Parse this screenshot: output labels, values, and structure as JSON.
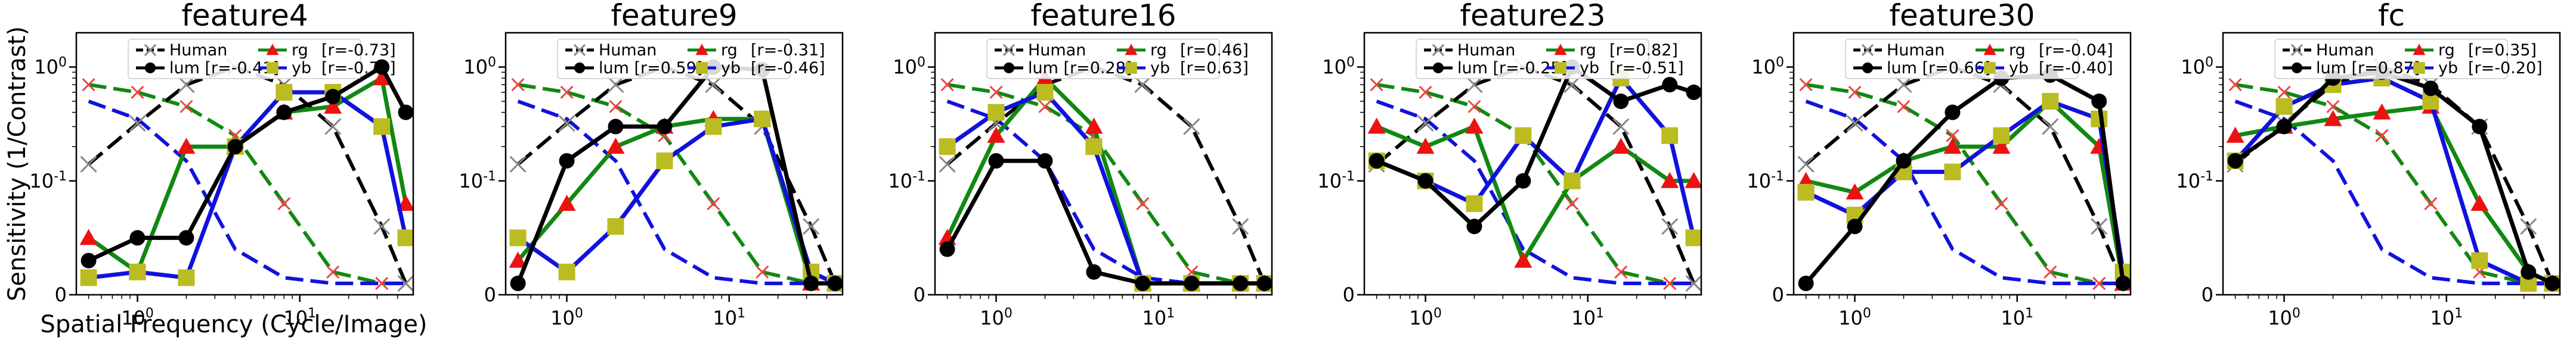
{
  "figure": {
    "ylabel": "Sensitivity (1/Contrast)",
    "xlabel": "Spatial Frequency (Cycle/Image)"
  },
  "chart_data": [
    {
      "type": "line",
      "title": "feature4",
      "x_scale": "log",
      "y_scale": "symlog",
      "xlim": [
        0.42,
        50
      ],
      "ylim": [
        0,
        2
      ],
      "x_ticks": [
        "10^0",
        "10^1"
      ],
      "y_ticks": [
        "0",
        "10^-1",
        "10^0"
      ],
      "legend_position": "upper center",
      "legend": {
        "human": "Human",
        "lum": "lum [r=-0.41]",
        "rg": "rg",
        "rg_r": "[r=-0.73]",
        "yb": "yb",
        "yb_r": "[r=-0.70]"
      },
      "series": [
        {
          "name": "Human",
          "x": [
            0.5,
            1,
            2,
            4,
            8,
            16,
            32,
            45
          ],
          "y": [
            0.14,
            0.32,
            0.7,
            1.0,
            0.7,
            0.3,
            0.06,
            0.01
          ]
        },
        {
          "name": "lum",
          "x": [
            0.5,
            1,
            2,
            4,
            8,
            16,
            32,
            45
          ],
          "y": [
            0.03,
            0.05,
            0.05,
            0.2,
            0.4,
            0.55,
            1.0,
            0.4
          ]
        },
        {
          "name": "rg",
          "x": [
            0.5,
            1,
            2,
            4,
            8,
            16,
            32,
            45
          ],
          "y": [
            0.05,
            0.02,
            0.2,
            0.2,
            0.4,
            0.45,
            0.8,
            0.08
          ]
        },
        {
          "name": "yb",
          "x": [
            0.5,
            1,
            2,
            4,
            8,
            16,
            32,
            45
          ],
          "y": [
            0.015,
            0.02,
            0.015,
            0.2,
            0.6,
            0.6,
            0.3,
            0.05
          ]
        },
        {
          "name": "human-rg",
          "x": [
            0.5,
            1,
            2,
            4,
            8,
            16,
            32,
            45
          ],
          "y": [
            0.7,
            0.6,
            0.45,
            0.25,
            0.08,
            0.02,
            0.01,
            0.01
          ]
        },
        {
          "name": "human-yb",
          "x": [
            0.5,
            1,
            2,
            4,
            8,
            16,
            32,
            45
          ],
          "y": [
            0.5,
            0.35,
            0.15,
            0.04,
            0.015,
            0.01,
            0.01,
            0.01
          ]
        }
      ]
    },
    {
      "type": "line",
      "title": "feature9",
      "x_scale": "log",
      "y_scale": "symlog",
      "xlim": [
        0.42,
        50
      ],
      "ylim": [
        0,
        2
      ],
      "x_ticks": [
        "10^0",
        "10^1"
      ],
      "y_ticks": [
        "0",
        "10^-1",
        "10^0"
      ],
      "legend_position": "upper center",
      "legend": {
        "human": "Human",
        "lum": "lum [r=0.59]",
        "rg": "rg",
        "rg_r": "[r=-0.31]",
        "yb": "yb",
        "yb_r": "[r=-0.46]"
      },
      "series": [
        {
          "name": "Human",
          "x": [
            0.5,
            1,
            2,
            4,
            8,
            16,
            32,
            45
          ],
          "y": [
            0.14,
            0.32,
            0.7,
            1.0,
            0.7,
            0.3,
            0.06,
            0.01
          ]
        },
        {
          "name": "lum",
          "x": [
            0.5,
            1,
            2,
            4,
            8,
            16,
            32,
            45
          ],
          "y": [
            0.01,
            0.15,
            0.3,
            0.3,
            1.0,
            0.95,
            0.01,
            0.01
          ]
        },
        {
          "name": "rg",
          "x": [
            0.5,
            1,
            2,
            4,
            8,
            16,
            32,
            45
          ],
          "y": [
            0.03,
            0.08,
            0.2,
            0.3,
            0.35,
            0.35,
            0.01,
            0.01
          ]
        },
        {
          "name": "yb",
          "x": [
            0.5,
            1,
            2,
            4,
            8,
            16,
            32,
            45
          ],
          "y": [
            0.05,
            0.02,
            0.06,
            0.15,
            0.3,
            0.35,
            0.02,
            0.01
          ]
        },
        {
          "name": "human-rg",
          "x": [
            0.5,
            1,
            2,
            4,
            8,
            16,
            32,
            45
          ],
          "y": [
            0.7,
            0.6,
            0.45,
            0.25,
            0.08,
            0.02,
            0.01,
            0.01
          ]
        },
        {
          "name": "human-yb",
          "x": [
            0.5,
            1,
            2,
            4,
            8,
            16,
            32,
            45
          ],
          "y": [
            0.5,
            0.35,
            0.15,
            0.04,
            0.015,
            0.01,
            0.01,
            0.01
          ]
        }
      ]
    },
    {
      "type": "line",
      "title": "feature16",
      "x_scale": "log",
      "y_scale": "symlog",
      "xlim": [
        0.42,
        50
      ],
      "ylim": [
        0,
        2
      ],
      "x_ticks": [
        "10^0",
        "10^1"
      ],
      "y_ticks": [
        "0",
        "10^-1",
        "10^0"
      ],
      "legend_position": "upper center",
      "legend": {
        "human": "Human",
        "lum": "lum [r=0.28]",
        "rg": "rg",
        "rg_r": "[r=0.46]",
        "yb": "yb",
        "yb_r": "[r=0.63]"
      },
      "series": [
        {
          "name": "Human",
          "x": [
            0.5,
            1,
            2,
            4,
            8,
            16,
            32,
            45
          ],
          "y": [
            0.14,
            0.32,
            0.7,
            1.0,
            0.7,
            0.3,
            0.06,
            0.01
          ]
        },
        {
          "name": "lum",
          "x": [
            0.5,
            1,
            2,
            4,
            8,
            16,
            32,
            45
          ],
          "y": [
            0.04,
            0.15,
            0.15,
            0.02,
            0.01,
            0.01,
            0.01,
            0.01
          ]
        },
        {
          "name": "rg",
          "x": [
            0.5,
            1,
            2,
            4,
            8,
            16,
            32,
            45
          ],
          "y": [
            0.05,
            0.25,
            0.8,
            0.3,
            0.01,
            0.01,
            0.01,
            0.01
          ]
        },
        {
          "name": "yb",
          "x": [
            0.5,
            1,
            2,
            4,
            8,
            16,
            32,
            45
          ],
          "y": [
            0.2,
            0.4,
            0.6,
            0.2,
            0.01,
            0.01,
            0.01,
            0.01
          ]
        },
        {
          "name": "human-rg",
          "x": [
            0.5,
            1,
            2,
            4,
            8,
            16,
            32,
            45
          ],
          "y": [
            0.7,
            0.6,
            0.45,
            0.25,
            0.08,
            0.02,
            0.01,
            0.01
          ]
        },
        {
          "name": "human-yb",
          "x": [
            0.5,
            1,
            2,
            4,
            8,
            16,
            32,
            45
          ],
          "y": [
            0.5,
            0.35,
            0.15,
            0.04,
            0.015,
            0.01,
            0.01,
            0.01
          ]
        }
      ]
    },
    {
      "type": "line",
      "title": "feature23",
      "x_scale": "log",
      "y_scale": "symlog",
      "xlim": [
        0.42,
        50
      ],
      "ylim": [
        0,
        2
      ],
      "x_ticks": [
        "10^0",
        "10^1"
      ],
      "y_ticks": [
        "0",
        "10^-1",
        "10^0"
      ],
      "legend_position": "upper center",
      "legend": {
        "human": "Human",
        "lum": "lum [r=-0.25]",
        "rg": "rg",
        "rg_r": "[r=0.82]",
        "yb": "yb",
        "yb_r": "[r=-0.51]"
      },
      "series": [
        {
          "name": "Human",
          "x": [
            0.5,
            1,
            2,
            4,
            8,
            16,
            32,
            45
          ],
          "y": [
            0.14,
            0.32,
            0.7,
            1.0,
            0.7,
            0.3,
            0.06,
            0.01
          ]
        },
        {
          "name": "lum",
          "x": [
            0.5,
            1,
            2,
            4,
            8,
            16,
            32,
            45
          ],
          "y": [
            0.15,
            0.1,
            0.06,
            0.1,
            1.0,
            0.5,
            0.7,
            0.6
          ]
        },
        {
          "name": "rg",
          "x": [
            0.5,
            1,
            2,
            4,
            8,
            16,
            32,
            45
          ],
          "y": [
            0.3,
            0.2,
            0.3,
            0.03,
            0.1,
            0.2,
            0.1,
            0.1
          ]
        },
        {
          "name": "yb",
          "x": [
            0.5,
            1,
            2,
            4,
            8,
            16,
            32,
            45
          ],
          "y": [
            0.15,
            0.1,
            0.08,
            0.25,
            0.1,
            0.8,
            0.25,
            0.05
          ]
        },
        {
          "name": "human-rg",
          "x": [
            0.5,
            1,
            2,
            4,
            8,
            16,
            32,
            45
          ],
          "y": [
            0.7,
            0.6,
            0.45,
            0.25,
            0.08,
            0.02,
            0.01,
            0.01
          ]
        },
        {
          "name": "human-yb",
          "x": [
            0.5,
            1,
            2,
            4,
            8,
            16,
            32,
            45
          ],
          "y": [
            0.5,
            0.35,
            0.15,
            0.04,
            0.015,
            0.01,
            0.01,
            0.01
          ]
        }
      ]
    },
    {
      "type": "line",
      "title": "feature30",
      "x_scale": "log",
      "y_scale": "symlog",
      "xlim": [
        0.42,
        50
      ],
      "ylim": [
        0,
        2
      ],
      "x_ticks": [
        "10^0",
        "10^1"
      ],
      "y_ticks": [
        "0",
        "10^-1",
        "10^0"
      ],
      "legend_position": "upper center",
      "legend": {
        "human": "Human",
        "lum": "lum [r=0.66]",
        "rg": "rg",
        "rg_r": "[r=-0.04]",
        "yb": "yb",
        "yb_r": "[r=-0.40]"
      },
      "series": [
        {
          "name": "Human",
          "x": [
            0.5,
            1,
            2,
            4,
            8,
            16,
            32,
            45
          ],
          "y": [
            0.14,
            0.32,
            0.7,
            1.0,
            0.7,
            0.3,
            0.06,
            0.01
          ]
        },
        {
          "name": "lum",
          "x": [
            0.5,
            1,
            2,
            4,
            8,
            16,
            32,
            45
          ],
          "y": [
            0.01,
            0.06,
            0.15,
            0.4,
            0.8,
            0.85,
            0.5,
            0.01
          ]
        },
        {
          "name": "rg",
          "x": [
            0.5,
            1,
            2,
            4,
            8,
            16,
            32,
            45
          ],
          "y": [
            0.1,
            0.09,
            0.15,
            0.2,
            0.2,
            0.5,
            0.2,
            0.01
          ]
        },
        {
          "name": "yb",
          "x": [
            0.5,
            1,
            2,
            4,
            8,
            16,
            32,
            45
          ],
          "y": [
            0.09,
            0.07,
            0.12,
            0.12,
            0.25,
            0.5,
            0.35,
            0.02
          ]
        },
        {
          "name": "human-rg",
          "x": [
            0.5,
            1,
            2,
            4,
            8,
            16,
            32,
            45
          ],
          "y": [
            0.7,
            0.6,
            0.45,
            0.25,
            0.08,
            0.02,
            0.01,
            0.01
          ]
        },
        {
          "name": "human-yb",
          "x": [
            0.5,
            1,
            2,
            4,
            8,
            16,
            32,
            45
          ],
          "y": [
            0.5,
            0.35,
            0.15,
            0.04,
            0.015,
            0.01,
            0.01,
            0.01
          ]
        }
      ]
    },
    {
      "type": "line",
      "title": "fc",
      "x_scale": "log",
      "y_scale": "symlog",
      "xlim": [
        0.42,
        50
      ],
      "ylim": [
        0,
        2
      ],
      "x_ticks": [
        "10^0",
        "10^1"
      ],
      "y_ticks": [
        "0",
        "10^-1",
        "10^0"
      ],
      "legend_position": "upper center",
      "legend": {
        "human": "Human",
        "lum": "lum [r=0.87]",
        "rg": "rg",
        "rg_r": "[r=0.35]",
        "yb": "yb",
        "yb_r": "[r=-0.20]"
      },
      "series": [
        {
          "name": "Human",
          "x": [
            0.5,
            1,
            2,
            4,
            8,
            16,
            32,
            45
          ],
          "y": [
            0.14,
            0.32,
            0.7,
            1.0,
            0.7,
            0.3,
            0.06,
            0.01
          ]
        },
        {
          "name": "lum",
          "x": [
            0.5,
            1,
            2,
            4,
            8,
            16,
            32,
            45
          ],
          "y": [
            0.15,
            0.3,
            0.8,
            0.9,
            0.65,
            0.3,
            0.02,
            0.01
          ]
        },
        {
          "name": "rg",
          "x": [
            0.5,
            1,
            2,
            4,
            8,
            16,
            32,
            45
          ],
          "y": [
            0.25,
            0.3,
            0.35,
            0.4,
            0.45,
            0.08,
            0.02,
            0.01
          ]
        },
        {
          "name": "yb",
          "x": [
            0.5,
            1,
            2,
            4,
            8,
            16,
            32,
            45
          ],
          "y": [
            0.15,
            0.45,
            0.7,
            0.8,
            0.5,
            0.03,
            0.01,
            0.01
          ]
        },
        {
          "name": "human-rg",
          "x": [
            0.5,
            1,
            2,
            4,
            8,
            16,
            32,
            45
          ],
          "y": [
            0.7,
            0.6,
            0.45,
            0.25,
            0.08,
            0.02,
            0.01,
            0.01
          ]
        },
        {
          "name": "human-yb",
          "x": [
            0.5,
            1,
            2,
            4,
            8,
            16,
            32,
            45
          ],
          "y": [
            0.5,
            0.35,
            0.15,
            0.04,
            0.015,
            0.01,
            0.01,
            0.01
          ]
        }
      ]
    }
  ]
}
